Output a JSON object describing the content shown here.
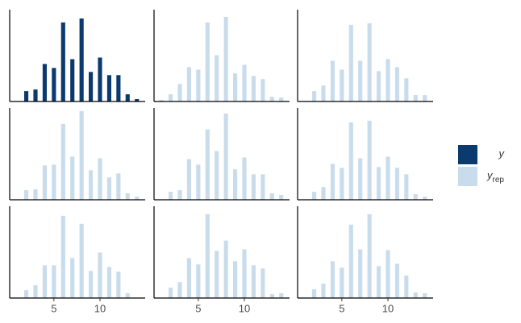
{
  "chart_data": {
    "type": "bar",
    "x": [
      1,
      2,
      3,
      4,
      5,
      6,
      7,
      8,
      9,
      10,
      11,
      12,
      13,
      14
    ],
    "xlim": [
      0.2,
      14.9
    ],
    "xticks": [
      5,
      10
    ],
    "ylim": [
      0,
      115
    ],
    "series": [
      {
        "name": "y",
        "color": "#0b3a6f",
        "panels": [
          [
            null,
            13,
            15,
            47,
            42,
            99,
            53,
            104,
            37,
            55,
            33,
            33,
            9,
            3
          ]
        ]
      },
      {
        "name": "y",
        "name_sub": "rep",
        "color": "#c9dcec",
        "panels": [
          [
            2,
            9,
            22,
            43,
            40,
            99,
            58,
            106,
            35,
            46,
            32,
            28,
            6,
            5
          ],
          [
            null,
            13,
            20,
            51,
            40,
            96,
            51,
            98,
            38,
            53,
            43,
            29,
            8,
            8
          ],
          [
            null,
            12,
            13,
            43,
            44,
            95,
            54,
            111,
            37,
            52,
            28,
            33,
            8,
            4
          ],
          [
            null,
            10,
            12,
            51,
            44,
            88,
            61,
            108,
            38,
            53,
            32,
            32,
            8,
            6
          ],
          [
            null,
            10,
            16,
            45,
            40,
            97,
            52,
            99,
            41,
            54,
            40,
            32,
            7,
            4
          ],
          [
            null,
            10,
            16,
            41,
            41,
            103,
            50,
            93,
            34,
            57,
            39,
            33,
            6,
            null
          ],
          [
            null,
            13,
            20,
            50,
            42,
            105,
            59,
            72,
            46,
            61,
            41,
            37,
            5,
            6
          ],
          [
            null,
            11,
            18,
            46,
            38,
            92,
            61,
            105,
            40,
            60,
            43,
            28,
            7,
            6
          ]
        ]
      }
    ]
  }
}
